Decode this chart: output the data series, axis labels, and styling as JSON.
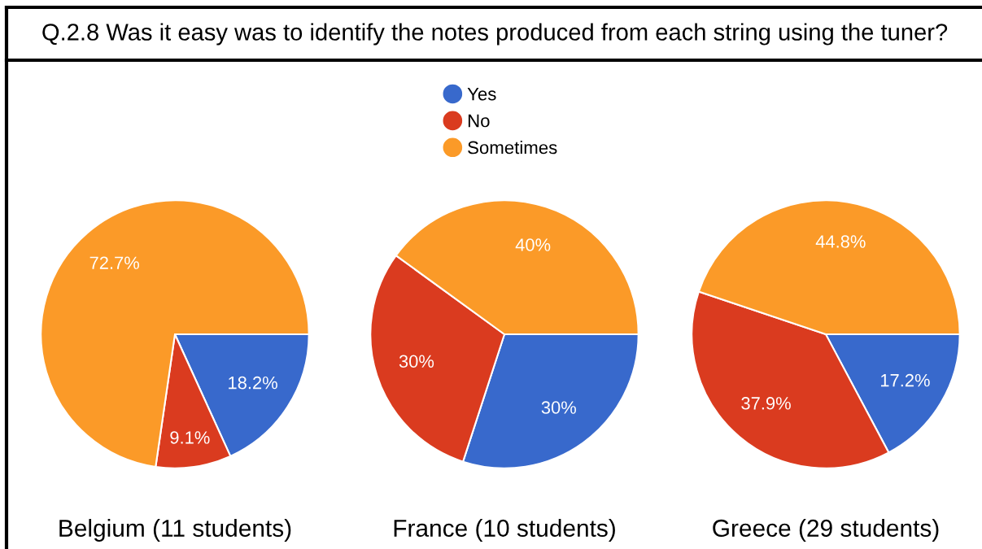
{
  "chart_data": [
    {
      "type": "pie",
      "title": "Q.2.8 Was it easy was to identify the notes produced from each string using the tuner?",
      "xlabel": "Belgium (11 students)",
      "categories": [
        "Yes",
        "No",
        "Sometimes"
      ],
      "values": [
        18.2,
        9.1,
        72.7
      ],
      "colors": [
        "#3869cc",
        "#da3b1f",
        "#fb9a28"
      ],
      "value_labels": [
        "18.2%",
        "9.1%",
        "72.7%"
      ],
      "legend": "top"
    },
    {
      "type": "pie",
      "xlabel": "France (10 students)",
      "categories": [
        null,
        null,
        null
      ],
      "values": [
        30,
        30,
        40
      ],
      "colors": [
        "#3869cc",
        "#da3b1f",
        "#fb9a28"
      ],
      "value_labels": [
        "30%",
        "30%",
        "40%"
      ]
    },
    {
      "type": "pie",
      "xlabel": "Greece (29 students)",
      "categories": [
        null,
        null,
        null
      ],
      "values": [
        17.2,
        37.9,
        44.8
      ],
      "colors": [
        "#3869cc",
        "#da3b1f",
        "#fb9a28"
      ],
      "value_labels": [
        "17.2%",
        "37.9%",
        "44.8%"
      ]
    }
  ]
}
